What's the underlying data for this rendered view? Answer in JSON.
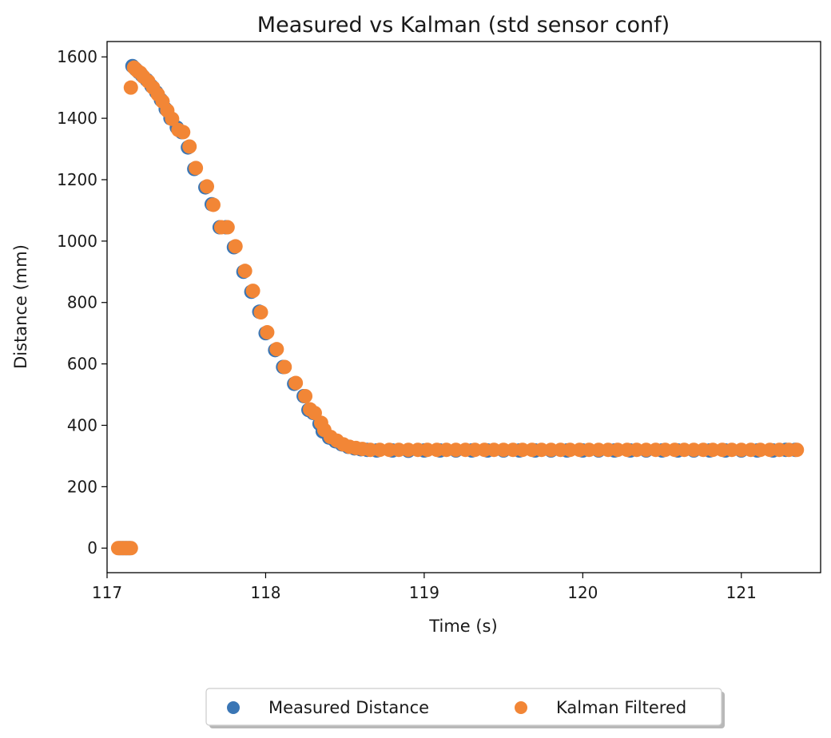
{
  "chart_data": {
    "type": "scatter",
    "title": "Measured vs Kalman (std sensor conf)",
    "xlabel": "Time (s)",
    "ylabel": "Distance (mm)",
    "xlim": [
      117.0,
      121.5
    ],
    "ylim": [
      -80,
      1650
    ],
    "x_ticks": [
      117,
      118,
      119,
      120,
      121
    ],
    "y_ticks": [
      0,
      200,
      400,
      600,
      800,
      1000,
      1200,
      1400,
      1600
    ],
    "grid": false,
    "legend_position": "bottom-center",
    "colors": {
      "measured": "#3a76b5",
      "kalman": "#f28636"
    },
    "series": [
      {
        "name": "Measured Distance",
        "color": "#3a76b5",
        "points": [
          [
            117.08,
            0
          ],
          [
            117.1,
            0
          ],
          [
            117.12,
            0
          ],
          [
            117.14,
            0
          ],
          [
            117.16,
            1570
          ],
          [
            117.18,
            1560
          ],
          [
            117.2,
            1550
          ],
          [
            117.22,
            1540
          ],
          [
            117.25,
            1525
          ],
          [
            117.28,
            1505
          ],
          [
            117.31,
            1485
          ],
          [
            117.34,
            1460
          ],
          [
            117.37,
            1430
          ],
          [
            117.4,
            1400
          ],
          [
            117.44,
            1370
          ],
          [
            117.47,
            1355
          ],
          [
            117.51,
            1305
          ],
          [
            117.55,
            1235
          ],
          [
            117.62,
            1175
          ],
          [
            117.66,
            1120
          ],
          [
            117.71,
            1045
          ],
          [
            117.75,
            1045
          ],
          [
            117.8,
            980
          ],
          [
            117.86,
            900
          ],
          [
            117.91,
            835
          ],
          [
            117.96,
            770
          ],
          [
            118.0,
            700
          ],
          [
            118.06,
            645
          ],
          [
            118.11,
            590
          ],
          [
            118.18,
            535
          ],
          [
            118.24,
            495
          ],
          [
            118.27,
            450
          ],
          [
            118.3,
            440
          ],
          [
            118.34,
            405
          ],
          [
            118.36,
            380
          ],
          [
            118.4,
            360
          ],
          [
            118.44,
            348
          ],
          [
            118.48,
            338
          ],
          [
            118.52,
            330
          ],
          [
            118.56,
            325
          ],
          [
            118.6,
            322
          ],
          [
            118.64,
            320
          ],
          [
            118.7,
            318
          ],
          [
            118.8,
            318
          ],
          [
            118.9,
            317
          ],
          [
            119.0,
            318
          ],
          [
            119.1,
            318
          ],
          [
            119.2,
            318
          ],
          [
            119.3,
            318
          ],
          [
            119.4,
            318
          ],
          [
            119.5,
            318
          ],
          [
            119.6,
            318
          ],
          [
            119.7,
            318
          ],
          [
            119.8,
            318
          ],
          [
            119.9,
            318
          ],
          [
            120.0,
            318
          ],
          [
            120.1,
            318
          ],
          [
            120.2,
            318
          ],
          [
            120.3,
            318
          ],
          [
            120.4,
            318
          ],
          [
            120.5,
            318
          ],
          [
            120.6,
            318
          ],
          [
            120.7,
            318
          ],
          [
            120.8,
            318
          ],
          [
            120.9,
            318
          ],
          [
            121.0,
            318
          ],
          [
            121.1,
            318
          ],
          [
            121.2,
            318
          ],
          [
            121.28,
            320
          ],
          [
            121.34,
            320
          ]
        ]
      },
      {
        "name": "Kalman Filtered",
        "color": "#f28636",
        "points": [
          [
            117.07,
            0
          ],
          [
            117.09,
            0
          ],
          [
            117.11,
            0
          ],
          [
            117.13,
            0
          ],
          [
            117.15,
            0
          ],
          [
            117.15,
            1500
          ],
          [
            117.17,
            1565
          ],
          [
            117.19,
            1555
          ],
          [
            117.21,
            1548
          ],
          [
            117.23,
            1535
          ],
          [
            117.26,
            1520
          ],
          [
            117.29,
            1500
          ],
          [
            117.32,
            1478
          ],
          [
            117.35,
            1455
          ],
          [
            117.38,
            1425
          ],
          [
            117.41,
            1398
          ],
          [
            117.45,
            1362
          ],
          [
            117.48,
            1355
          ],
          [
            117.52,
            1308
          ],
          [
            117.56,
            1238
          ],
          [
            117.63,
            1178
          ],
          [
            117.67,
            1118
          ],
          [
            117.72,
            1045
          ],
          [
            117.76,
            1045
          ],
          [
            117.81,
            983
          ],
          [
            117.87,
            903
          ],
          [
            117.92,
            838
          ],
          [
            117.97,
            768
          ],
          [
            118.01,
            703
          ],
          [
            118.07,
            648
          ],
          [
            118.12,
            590
          ],
          [
            118.19,
            538
          ],
          [
            118.25,
            495
          ],
          [
            118.28,
            452
          ],
          [
            118.31,
            440
          ],
          [
            118.35,
            408
          ],
          [
            118.37,
            385
          ],
          [
            118.41,
            362
          ],
          [
            118.45,
            350
          ],
          [
            118.49,
            338
          ],
          [
            118.53,
            330
          ],
          [
            118.57,
            326
          ],
          [
            118.61,
            323
          ],
          [
            118.66,
            320
          ],
          [
            118.72,
            320
          ],
          [
            118.78,
            320
          ],
          [
            118.84,
            320
          ],
          [
            118.9,
            320
          ],
          [
            118.96,
            320
          ],
          [
            119.02,
            320
          ],
          [
            119.08,
            320
          ],
          [
            119.14,
            320
          ],
          [
            119.2,
            320
          ],
          [
            119.26,
            320
          ],
          [
            119.32,
            320
          ],
          [
            119.38,
            320
          ],
          [
            119.44,
            320
          ],
          [
            119.5,
            320
          ],
          [
            119.56,
            320
          ],
          [
            119.62,
            320
          ],
          [
            119.68,
            320
          ],
          [
            119.74,
            320
          ],
          [
            119.8,
            320
          ],
          [
            119.86,
            320
          ],
          [
            119.92,
            320
          ],
          [
            119.98,
            320
          ],
          [
            120.04,
            320
          ],
          [
            120.1,
            320
          ],
          [
            120.16,
            320
          ],
          [
            120.22,
            320
          ],
          [
            120.28,
            320
          ],
          [
            120.34,
            320
          ],
          [
            120.4,
            320
          ],
          [
            120.46,
            320
          ],
          [
            120.52,
            320
          ],
          [
            120.58,
            320
          ],
          [
            120.64,
            320
          ],
          [
            120.7,
            320
          ],
          [
            120.76,
            320
          ],
          [
            120.82,
            320
          ],
          [
            120.88,
            320
          ],
          [
            120.94,
            320
          ],
          [
            121.0,
            320
          ],
          [
            121.06,
            320
          ],
          [
            121.12,
            320
          ],
          [
            121.18,
            320
          ],
          [
            121.24,
            320
          ],
          [
            121.3,
            320
          ],
          [
            121.35,
            320
          ]
        ]
      }
    ]
  }
}
